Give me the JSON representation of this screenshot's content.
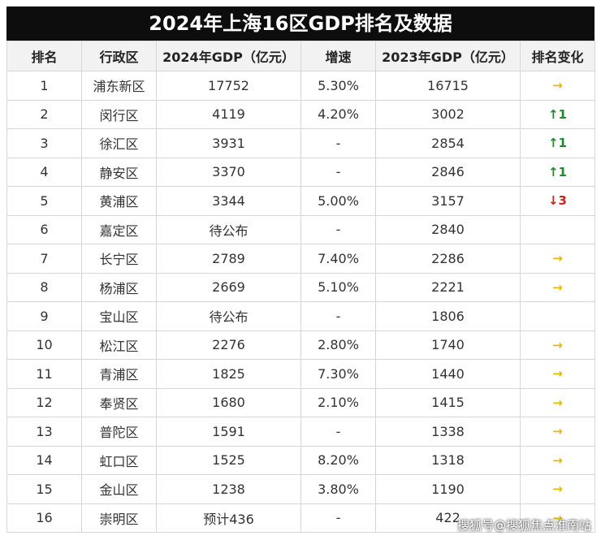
{
  "title": "2024年上海16区GDP排名及数据",
  "table": {
    "header": [
      "排名",
      "行政区",
      "2024年GDP（亿元）",
      "增速",
      "2023年GDP（亿元）",
      "排名变化"
    ],
    "rows": [
      [
        "1",
        "浦东新区",
        "17752",
        "5.30%",
        "16715",
        {
          "text": "→",
          "color": "#e6b800"
        }
      ],
      [
        "2",
        "闵行区",
        "4119",
        "4.20%",
        "3002",
        {
          "text": "↑1",
          "color": "#1e8a2e"
        }
      ],
      [
        "3",
        "徐汇区",
        "3931",
        "-",
        "2854",
        {
          "text": "↑1",
          "color": "#1e8a2e"
        }
      ],
      [
        "4",
        "静安区",
        "3370",
        "-",
        "2846",
        {
          "text": "↑1",
          "color": "#1e8a2e"
        }
      ],
      [
        "5",
        "黄浦区",
        "3344",
        "5.00%",
        "3157",
        {
          "text": "↓3",
          "color": "#d0201a"
        }
      ],
      [
        "6",
        "嘉定区",
        "待公布",
        "-",
        "2840",
        null
      ],
      [
        "7",
        "长宁区",
        "2789",
        "7.40%",
        "2286",
        {
          "text": "→",
          "color": "#e6b800"
        }
      ],
      [
        "8",
        "杨浦区",
        "2669",
        "5.10%",
        "2221",
        {
          "text": "→",
          "color": "#e6b800"
        }
      ],
      [
        "9",
        "宝山区",
        "待公布",
        "-",
        "1806",
        null
      ],
      [
        "10",
        "松江区",
        "2276",
        "2.80%",
        "1740",
        {
          "text": "→",
          "color": "#e6b800"
        }
      ],
      [
        "11",
        "青浦区",
        "1825",
        "7.30%",
        "1440",
        {
          "text": "→",
          "color": "#e6b800"
        }
      ],
      [
        "12",
        "奉贤区",
        "1680",
        "2.10%",
        "1415",
        {
          "text": "→",
          "color": "#e6b800"
        }
      ],
      [
        "13",
        "普陀区",
        "1591",
        "-",
        "1338",
        {
          "text": "→",
          "color": "#e6b800"
        }
      ],
      [
        "14",
        "虹口区",
        "1525",
        "8.20%",
        "1318",
        {
          "text": "→",
          "color": "#e6b800"
        }
      ],
      [
        "15",
        "金山区",
        "1238",
        "3.80%",
        "1190",
        {
          "text": "→",
          "color": "#e6b800"
        }
      ],
      [
        "16",
        "崇明区",
        "预计436",
        "-",
        "422",
        {
          "text": "→",
          "color": "#e6b800"
        }
      ]
    ]
  },
  "watermark": "搜狐号@搜狐焦点淮南站"
}
